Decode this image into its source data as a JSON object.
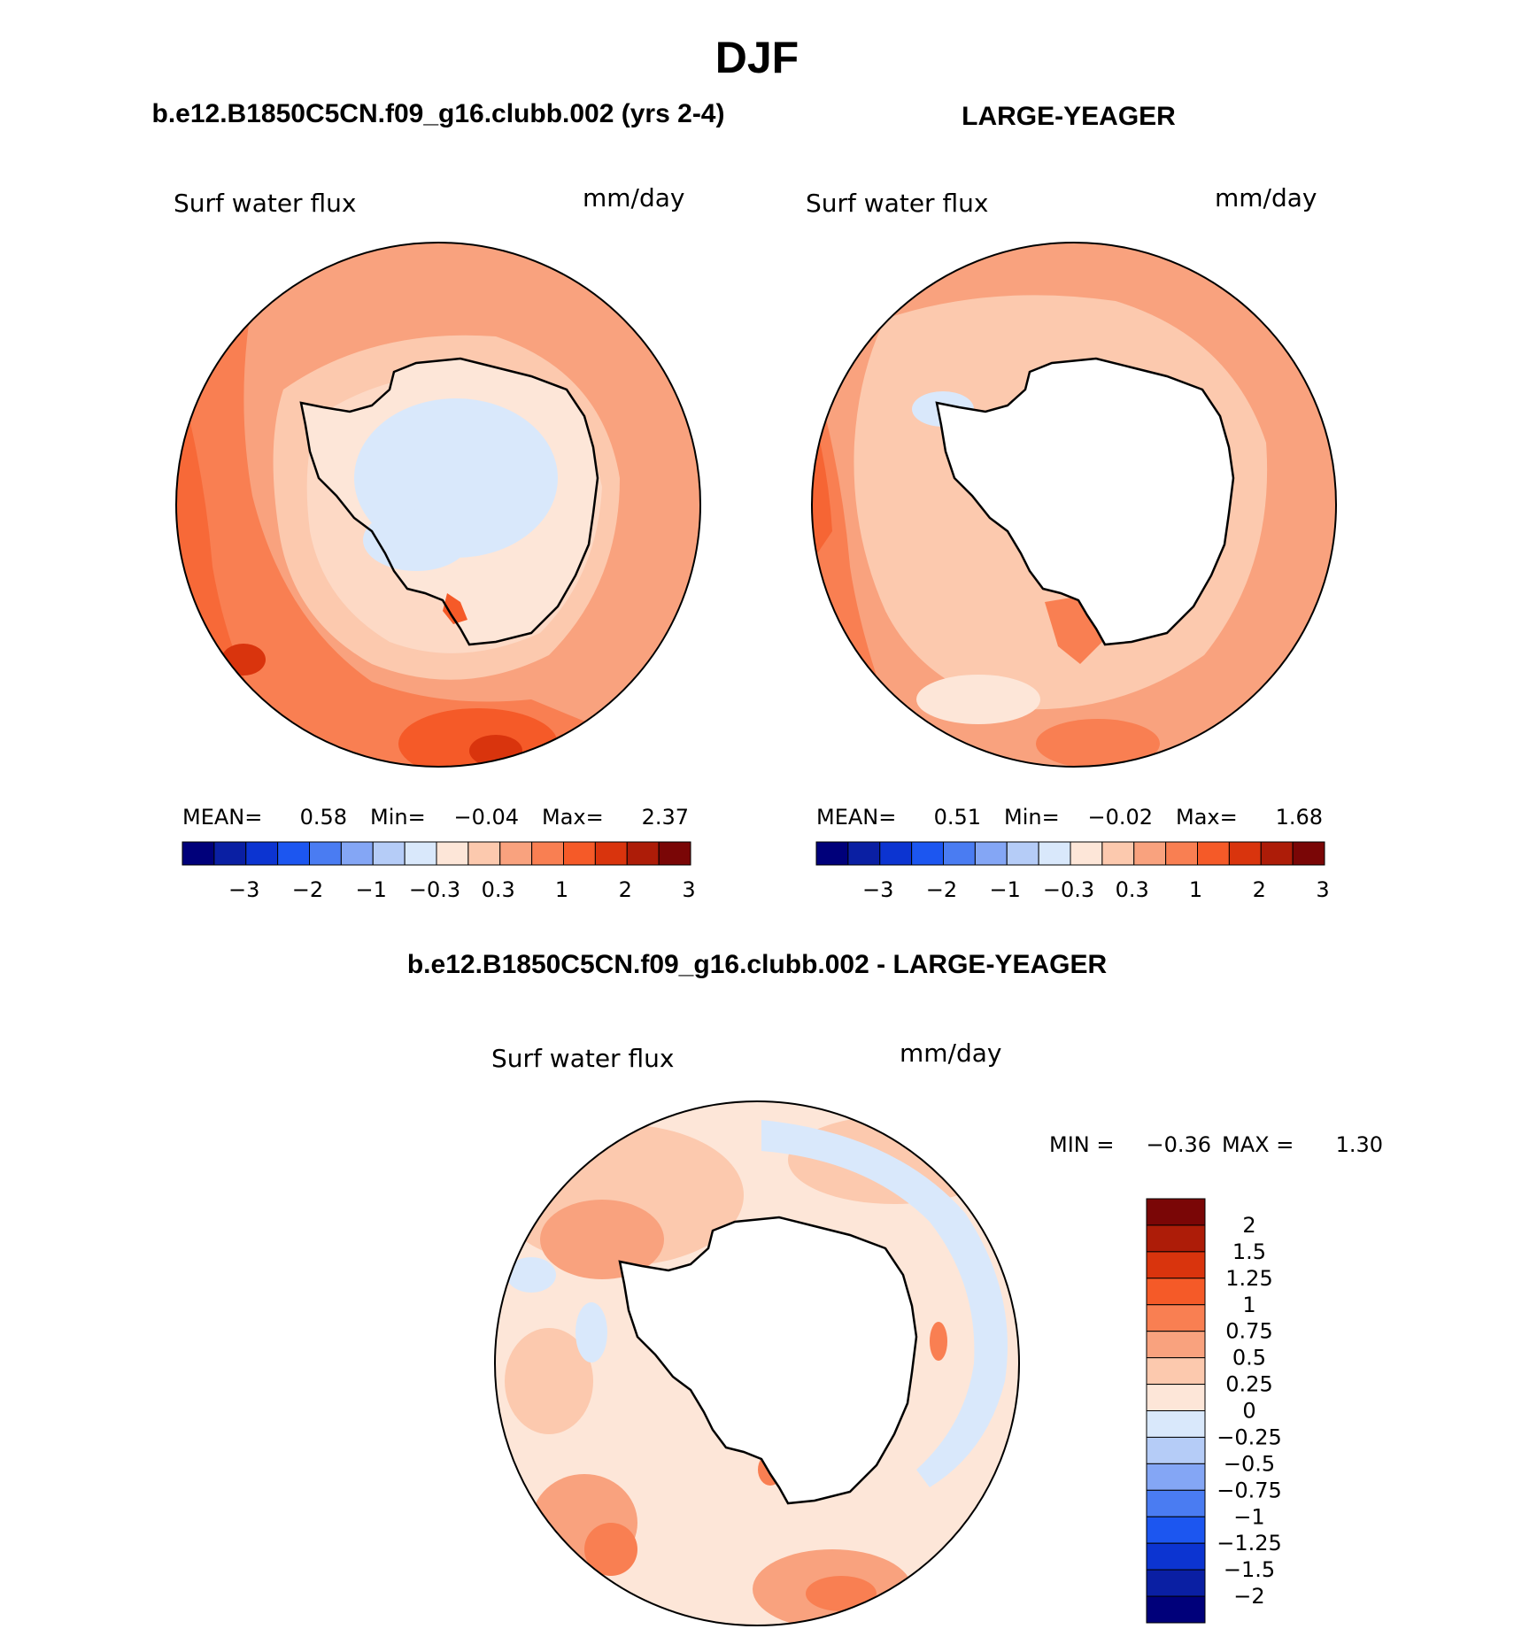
{
  "page": {
    "title": "DJF",
    "colors": [
      "#00007a",
      "#0a1fa3",
      "#0c34d1",
      "#1c56f0",
      "#4a7cf2",
      "#84a6f5",
      "#b5ccf7",
      "#d9e8fb",
      "#fde6d8",
      "#fcc9ae",
      "#f9a27e",
      "#f97f52",
      "#f55a28",
      "#d9340d",
      "#ad1c08",
      "#7a0606"
    ],
    "land_color": "#ffffff",
    "ocean_colors": {
      "high": "#f55a28",
      "mid": "#f97f52",
      "low": "#f9a27e",
      "weak": "#fcc9ae",
      "near0": "#fde6d8",
      "neg": "#d9e8fb"
    }
  },
  "chart_data": [
    {
      "type": "polar-contour-map",
      "title": "b.e12.B1850C5CN.f09_g16.clubb.002 (yrs 2-4)",
      "variable": "Surf water flux",
      "units": "mm/day",
      "stats": {
        "mean_label": "MEAN=",
        "mean": "0.58",
        "min_label": "Min=",
        "min": "−0.04",
        "max_label": "Max=",
        "max": "2.37"
      },
      "colorbar_ticks": [
        "−3",
        "−2",
        "−1",
        "−0.3",
        "0.3",
        "1",
        "2",
        "3"
      ],
      "projection": "south-polar-stereographic"
    },
    {
      "type": "polar-contour-map",
      "title": "LARGE-YEAGER",
      "variable": "Surf water flux",
      "units": "mm/day",
      "stats": {
        "mean_label": "MEAN=",
        "mean": "0.51",
        "min_label": "Min=",
        "min": "−0.02",
        "max_label": "Max=",
        "max": "1.68"
      },
      "colorbar_ticks": [
        "−3",
        "−2",
        "−1",
        "−0.3",
        "0.3",
        "1",
        "2",
        "3"
      ],
      "projection": "south-polar-stereographic"
    },
    {
      "type": "polar-contour-map",
      "title": "b.e12.B1850C5CN.f09_g16.clubb.002 - LARGE-YEAGER",
      "variable": "Surf water flux",
      "units": "mm/day",
      "stats": {
        "min_label": "MIN =",
        "min": "−0.36",
        "max_label": "MAX =",
        "max": "1.30"
      },
      "colorbar_ticks": [
        "2",
        "1.5",
        "1.25",
        "1",
        "0.75",
        "0.5",
        "0.25",
        "0",
        "−0.25",
        "−0.5",
        "−0.75",
        "−1",
        "−1.25",
        "−1.5",
        "−2"
      ],
      "projection": "south-polar-stereographic"
    }
  ]
}
